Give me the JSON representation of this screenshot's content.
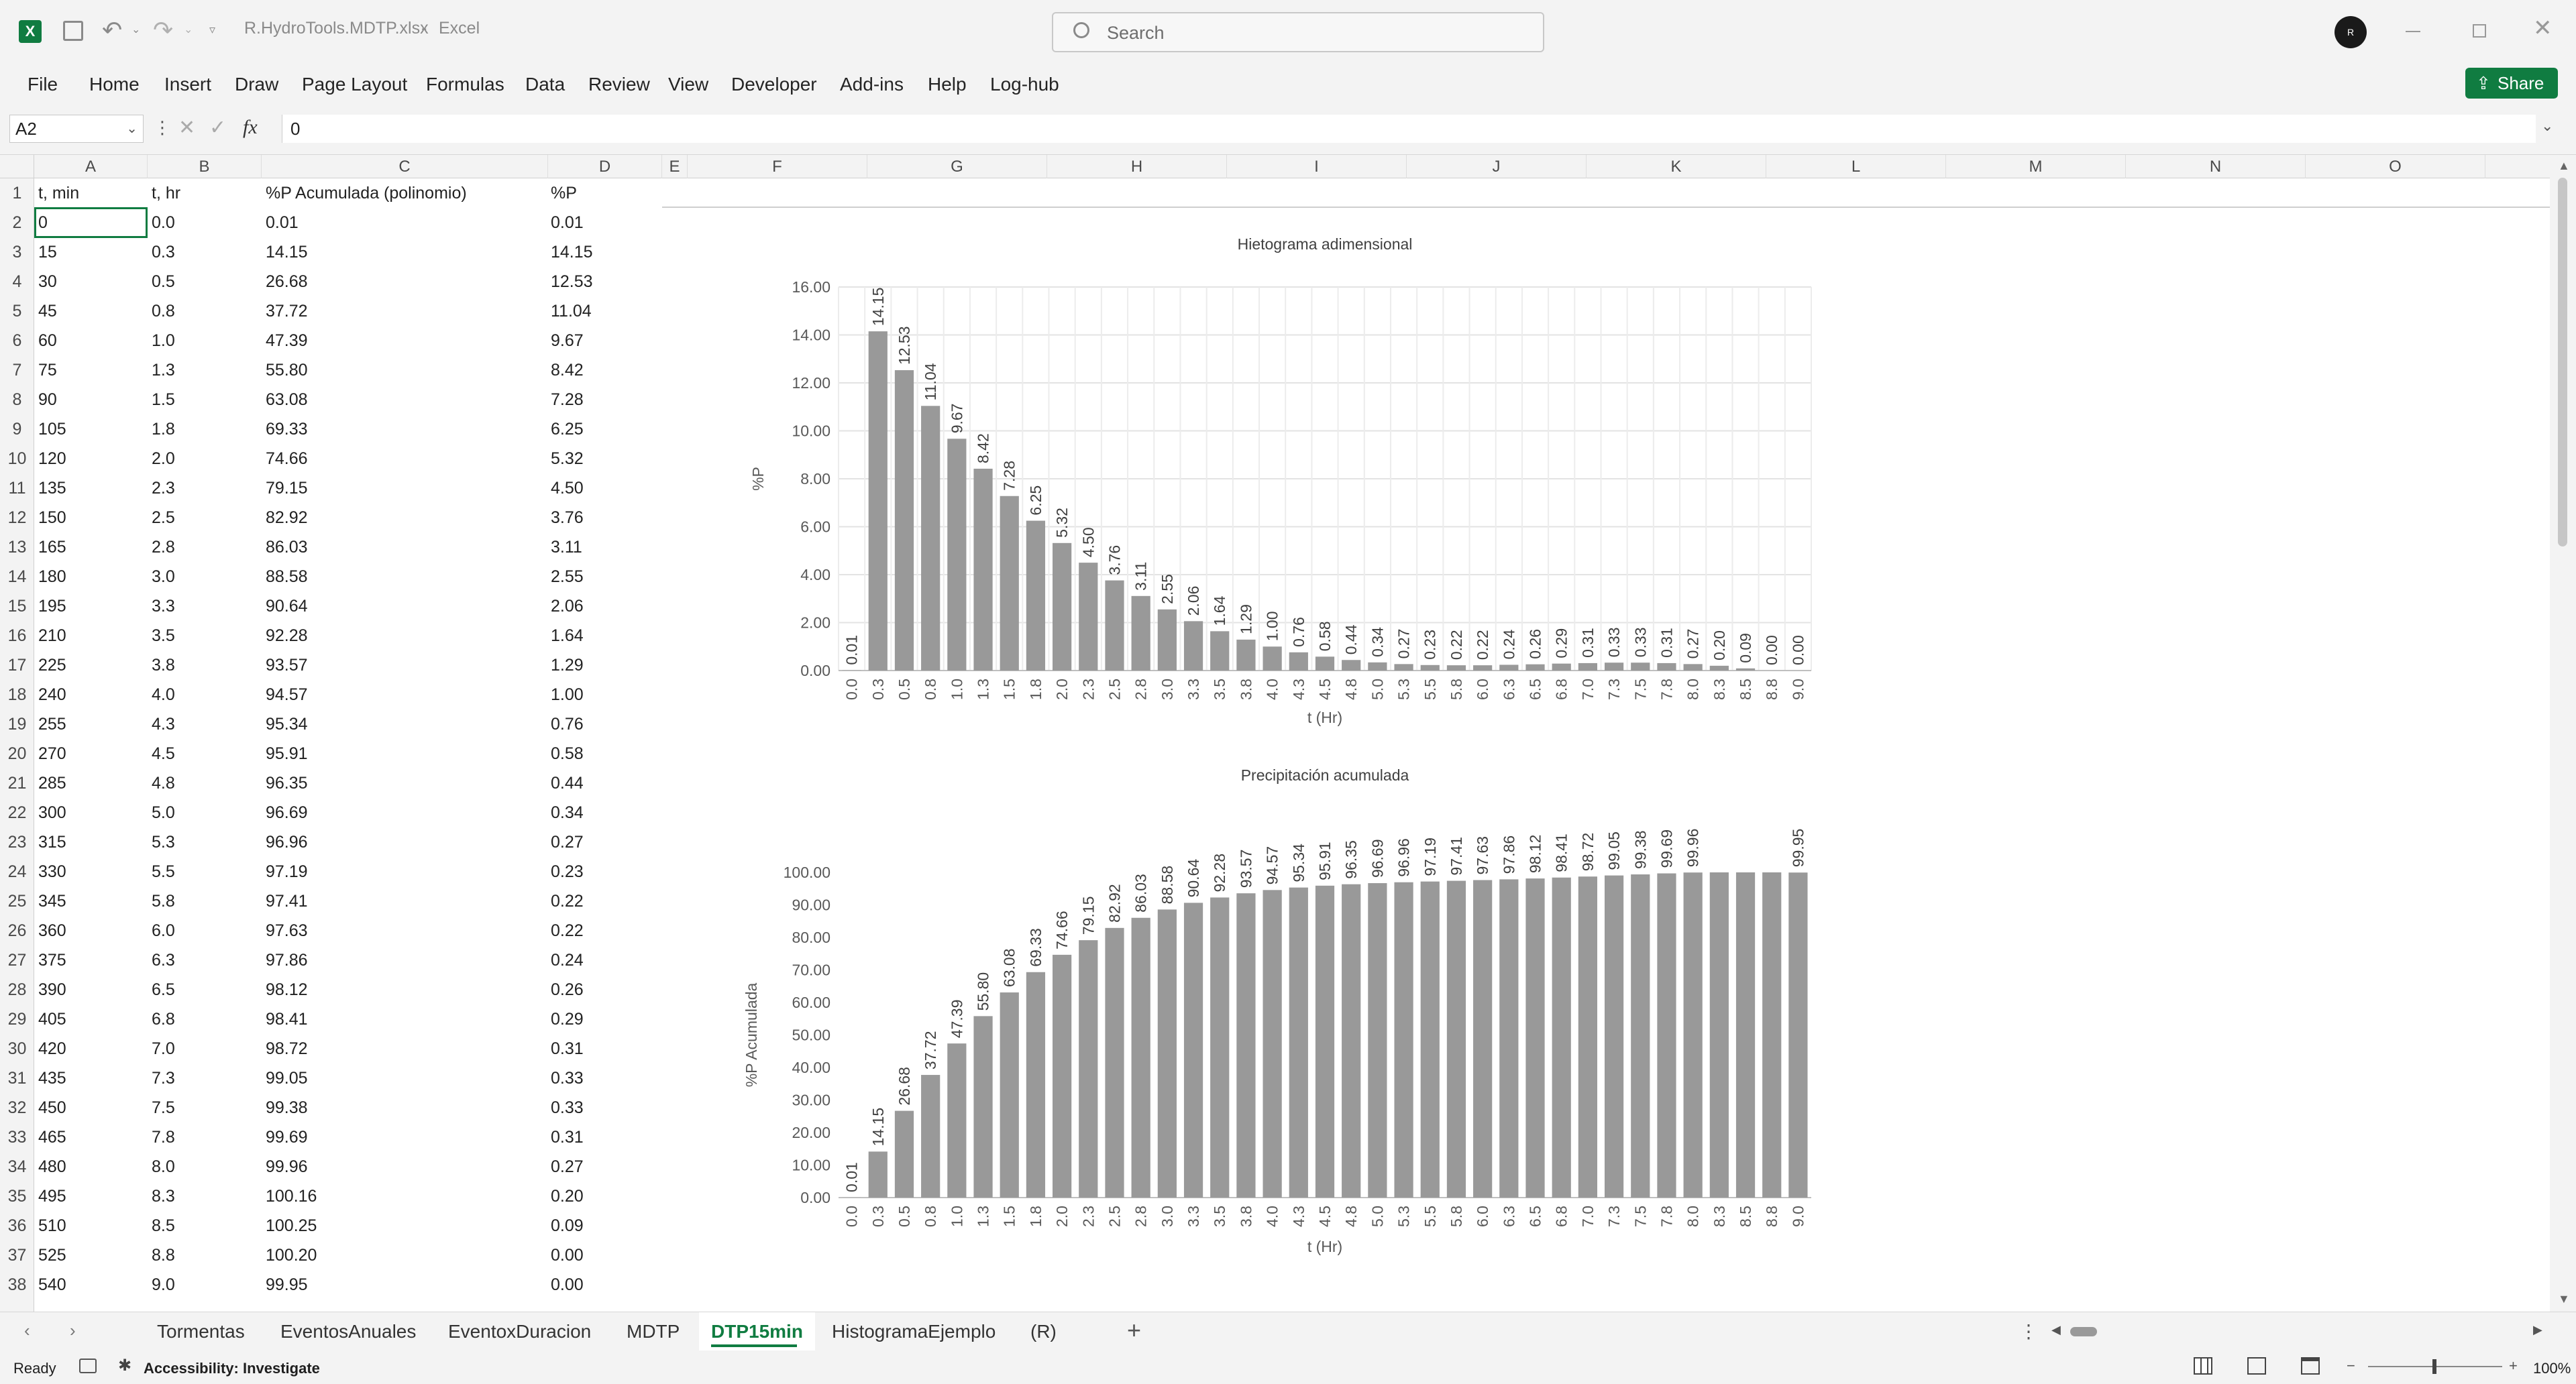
{
  "app": {
    "file_name": "R.HydroTools.MDTP.xlsx",
    "app_name": "Excel",
    "separator": "-",
    "search_placeholder": "Search",
    "account_initial": "R",
    "share_label": "Share"
  },
  "ribbon": [
    "File",
    "Home",
    "Insert",
    "Draw",
    "Page Layout",
    "Formulas",
    "Data",
    "Review",
    "View",
    "Developer",
    "Add-ins",
    "Help",
    "Log-hub"
  ],
  "formula_bar": {
    "name_box": "A2",
    "formula": "0",
    "fx": "fx"
  },
  "columns": [
    "A",
    "B",
    "C",
    "D",
    "E",
    "F",
    "G",
    "H",
    "I",
    "J",
    "K",
    "L",
    "M",
    "N",
    "O"
  ],
  "headers": [
    "t, min",
    "t, hr",
    "%P Acumulada (polinomio)",
    "%P"
  ],
  "rows": [
    [
      "0",
      "0.0",
      "0.01",
      "0.01"
    ],
    [
      "15",
      "0.3",
      "14.15",
      "14.15"
    ],
    [
      "30",
      "0.5",
      "26.68",
      "12.53"
    ],
    [
      "45",
      "0.8",
      "37.72",
      "11.04"
    ],
    [
      "60",
      "1.0",
      "47.39",
      "9.67"
    ],
    [
      "75",
      "1.3",
      "55.80",
      "8.42"
    ],
    [
      "90",
      "1.5",
      "63.08",
      "7.28"
    ],
    [
      "105",
      "1.8",
      "69.33",
      "6.25"
    ],
    [
      "120",
      "2.0",
      "74.66",
      "5.32"
    ],
    [
      "135",
      "2.3",
      "79.15",
      "4.50"
    ],
    [
      "150",
      "2.5",
      "82.92",
      "3.76"
    ],
    [
      "165",
      "2.8",
      "86.03",
      "3.11"
    ],
    [
      "180",
      "3.0",
      "88.58",
      "2.55"
    ],
    [
      "195",
      "3.3",
      "90.64",
      "2.06"
    ],
    [
      "210",
      "3.5",
      "92.28",
      "1.64"
    ],
    [
      "225",
      "3.8",
      "93.57",
      "1.29"
    ],
    [
      "240",
      "4.0",
      "94.57",
      "1.00"
    ],
    [
      "255",
      "4.3",
      "95.34",
      "0.76"
    ],
    [
      "270",
      "4.5",
      "95.91",
      "0.58"
    ],
    [
      "285",
      "4.8",
      "96.35",
      "0.44"
    ],
    [
      "300",
      "5.0",
      "96.69",
      "0.34"
    ],
    [
      "315",
      "5.3",
      "96.96",
      "0.27"
    ],
    [
      "330",
      "5.5",
      "97.19",
      "0.23"
    ],
    [
      "345",
      "5.8",
      "97.41",
      "0.22"
    ],
    [
      "360",
      "6.0",
      "97.63",
      "0.22"
    ],
    [
      "375",
      "6.3",
      "97.86",
      "0.24"
    ],
    [
      "390",
      "6.5",
      "98.12",
      "0.26"
    ],
    [
      "405",
      "6.8",
      "98.41",
      "0.29"
    ],
    [
      "420",
      "7.0",
      "98.72",
      "0.31"
    ],
    [
      "435",
      "7.3",
      "99.05",
      "0.33"
    ],
    [
      "450",
      "7.5",
      "99.38",
      "0.33"
    ],
    [
      "465",
      "7.8",
      "99.69",
      "0.31"
    ],
    [
      "480",
      "8.0",
      "99.96",
      "0.27"
    ],
    [
      "495",
      "8.3",
      "100.16",
      "0.20"
    ],
    [
      "510",
      "8.5",
      "100.25",
      "0.09"
    ],
    [
      "525",
      "8.8",
      "100.20",
      "0.00"
    ],
    [
      "540",
      "9.0",
      "99.95",
      "0.00"
    ]
  ],
  "sheet_tabs": [
    "Tormentas",
    "EventosAnuales",
    "EventoxDuracion",
    "MDTP",
    "DTP15min",
    "HistogramaEjemplo",
    "(R)"
  ],
  "active_tab": "DTP15min",
  "status": {
    "ready": "Ready",
    "accessibility": "Accessibility: Investigate",
    "zoom": "100%"
  },
  "chart_data": [
    {
      "type": "bar",
      "title": "Hietograma adimensional",
      "xlabel": "t (Hr)",
      "ylabel": "%P",
      "ylim": [
        0,
        16
      ],
      "yticks": [
        "0.00",
        "2.00",
        "4.00",
        "6.00",
        "8.00",
        "10.00",
        "12.00",
        "14.00",
        "16.00"
      ],
      "categories": [
        "0.0",
        "0.3",
        "0.5",
        "0.8",
        "1.0",
        "1.3",
        "1.5",
        "1.8",
        "2.0",
        "2.3",
        "2.5",
        "2.8",
        "3.0",
        "3.3",
        "3.5",
        "3.8",
        "4.0",
        "4.3",
        "4.5",
        "4.8",
        "5.0",
        "5.3",
        "5.5",
        "5.8",
        "6.0",
        "6.3",
        "6.5",
        "6.8",
        "7.0",
        "7.3",
        "7.5",
        "7.8",
        "8.0",
        "8.3",
        "8.5",
        "8.8",
        "9.0"
      ],
      "values": [
        0.01,
        14.15,
        12.53,
        11.04,
        9.67,
        8.42,
        7.28,
        6.25,
        5.32,
        4.5,
        3.76,
        3.11,
        2.55,
        2.06,
        1.64,
        1.29,
        1.0,
        0.76,
        0.58,
        0.44,
        0.34,
        0.27,
        0.23,
        0.22,
        0.22,
        0.24,
        0.26,
        0.29,
        0.31,
        0.33,
        0.33,
        0.31,
        0.27,
        0.2,
        0.09,
        0.0,
        0.0
      ],
      "labels": [
        "0.01",
        "14.15",
        "12.53",
        "11.04",
        "9.67",
        "8.42",
        "7.28",
        "6.25",
        "5.32",
        "4.50",
        "3.76",
        "3.11",
        "2.55",
        "2.06",
        "1.64",
        "1.29",
        "1.00",
        "0.76",
        "0.58",
        "0.44",
        "0.34",
        "0.27",
        "0.23",
        "0.22",
        "0.22",
        "0.24",
        "0.26",
        "0.29",
        "0.31",
        "0.33",
        "0.33",
        "0.31",
        "0.27",
        "0.20",
        "0.09",
        "0.00",
        "0.00"
      ],
      "grid": true
    },
    {
      "type": "bar",
      "title": "Precipitación acumulada",
      "xlabel": "t (Hr)",
      "ylabel": "%P Acumulada",
      "ylim": [
        0,
        100
      ],
      "yticks": [
        "0.00",
        "10.00",
        "20.00",
        "30.00",
        "40.00",
        "50.00",
        "60.00",
        "70.00",
        "80.00",
        "90.00",
        "100.00"
      ],
      "categories": [
        "0.0",
        "0.3",
        "0.5",
        "0.8",
        "1.0",
        "1.3",
        "1.5",
        "1.8",
        "2.0",
        "2.3",
        "2.5",
        "2.8",
        "3.0",
        "3.3",
        "3.5",
        "3.8",
        "4.0",
        "4.3",
        "4.5",
        "4.8",
        "5.0",
        "5.3",
        "5.5",
        "5.8",
        "6.0",
        "6.3",
        "6.5",
        "6.8",
        "7.0",
        "7.3",
        "7.5",
        "7.8",
        "8.0",
        "8.3",
        "8.5",
        "8.8",
        "9.0"
      ],
      "values": [
        0.01,
        14.15,
        26.68,
        37.72,
        47.39,
        55.8,
        63.08,
        69.33,
        74.66,
        79.15,
        82.92,
        86.03,
        88.58,
        90.64,
        92.28,
        93.57,
        94.57,
        95.34,
        95.91,
        96.35,
        96.69,
        96.96,
        97.19,
        97.41,
        97.63,
        97.86,
        98.12,
        98.41,
        98.72,
        99.05,
        99.38,
        99.69,
        99.96,
        100.16,
        100.25,
        100.2,
        99.95
      ],
      "labels": [
        "0.01",
        "14.15",
        "26.68",
        "37.72",
        "47.39",
        "55.80",
        "63.08",
        "69.33",
        "74.66",
        "79.15",
        "82.92",
        "86.03",
        "88.58",
        "90.64",
        "92.28",
        "93.57",
        "94.57",
        "95.34",
        "95.91",
        "96.35",
        "96.69",
        "96.96",
        "97.19",
        "97.41",
        "97.63",
        "97.86",
        "98.12",
        "98.41",
        "98.72",
        "99.05",
        "99.38",
        "99.69",
        "99.96",
        "",
        "",
        "",
        "99.95"
      ],
      "grid": false
    }
  ]
}
